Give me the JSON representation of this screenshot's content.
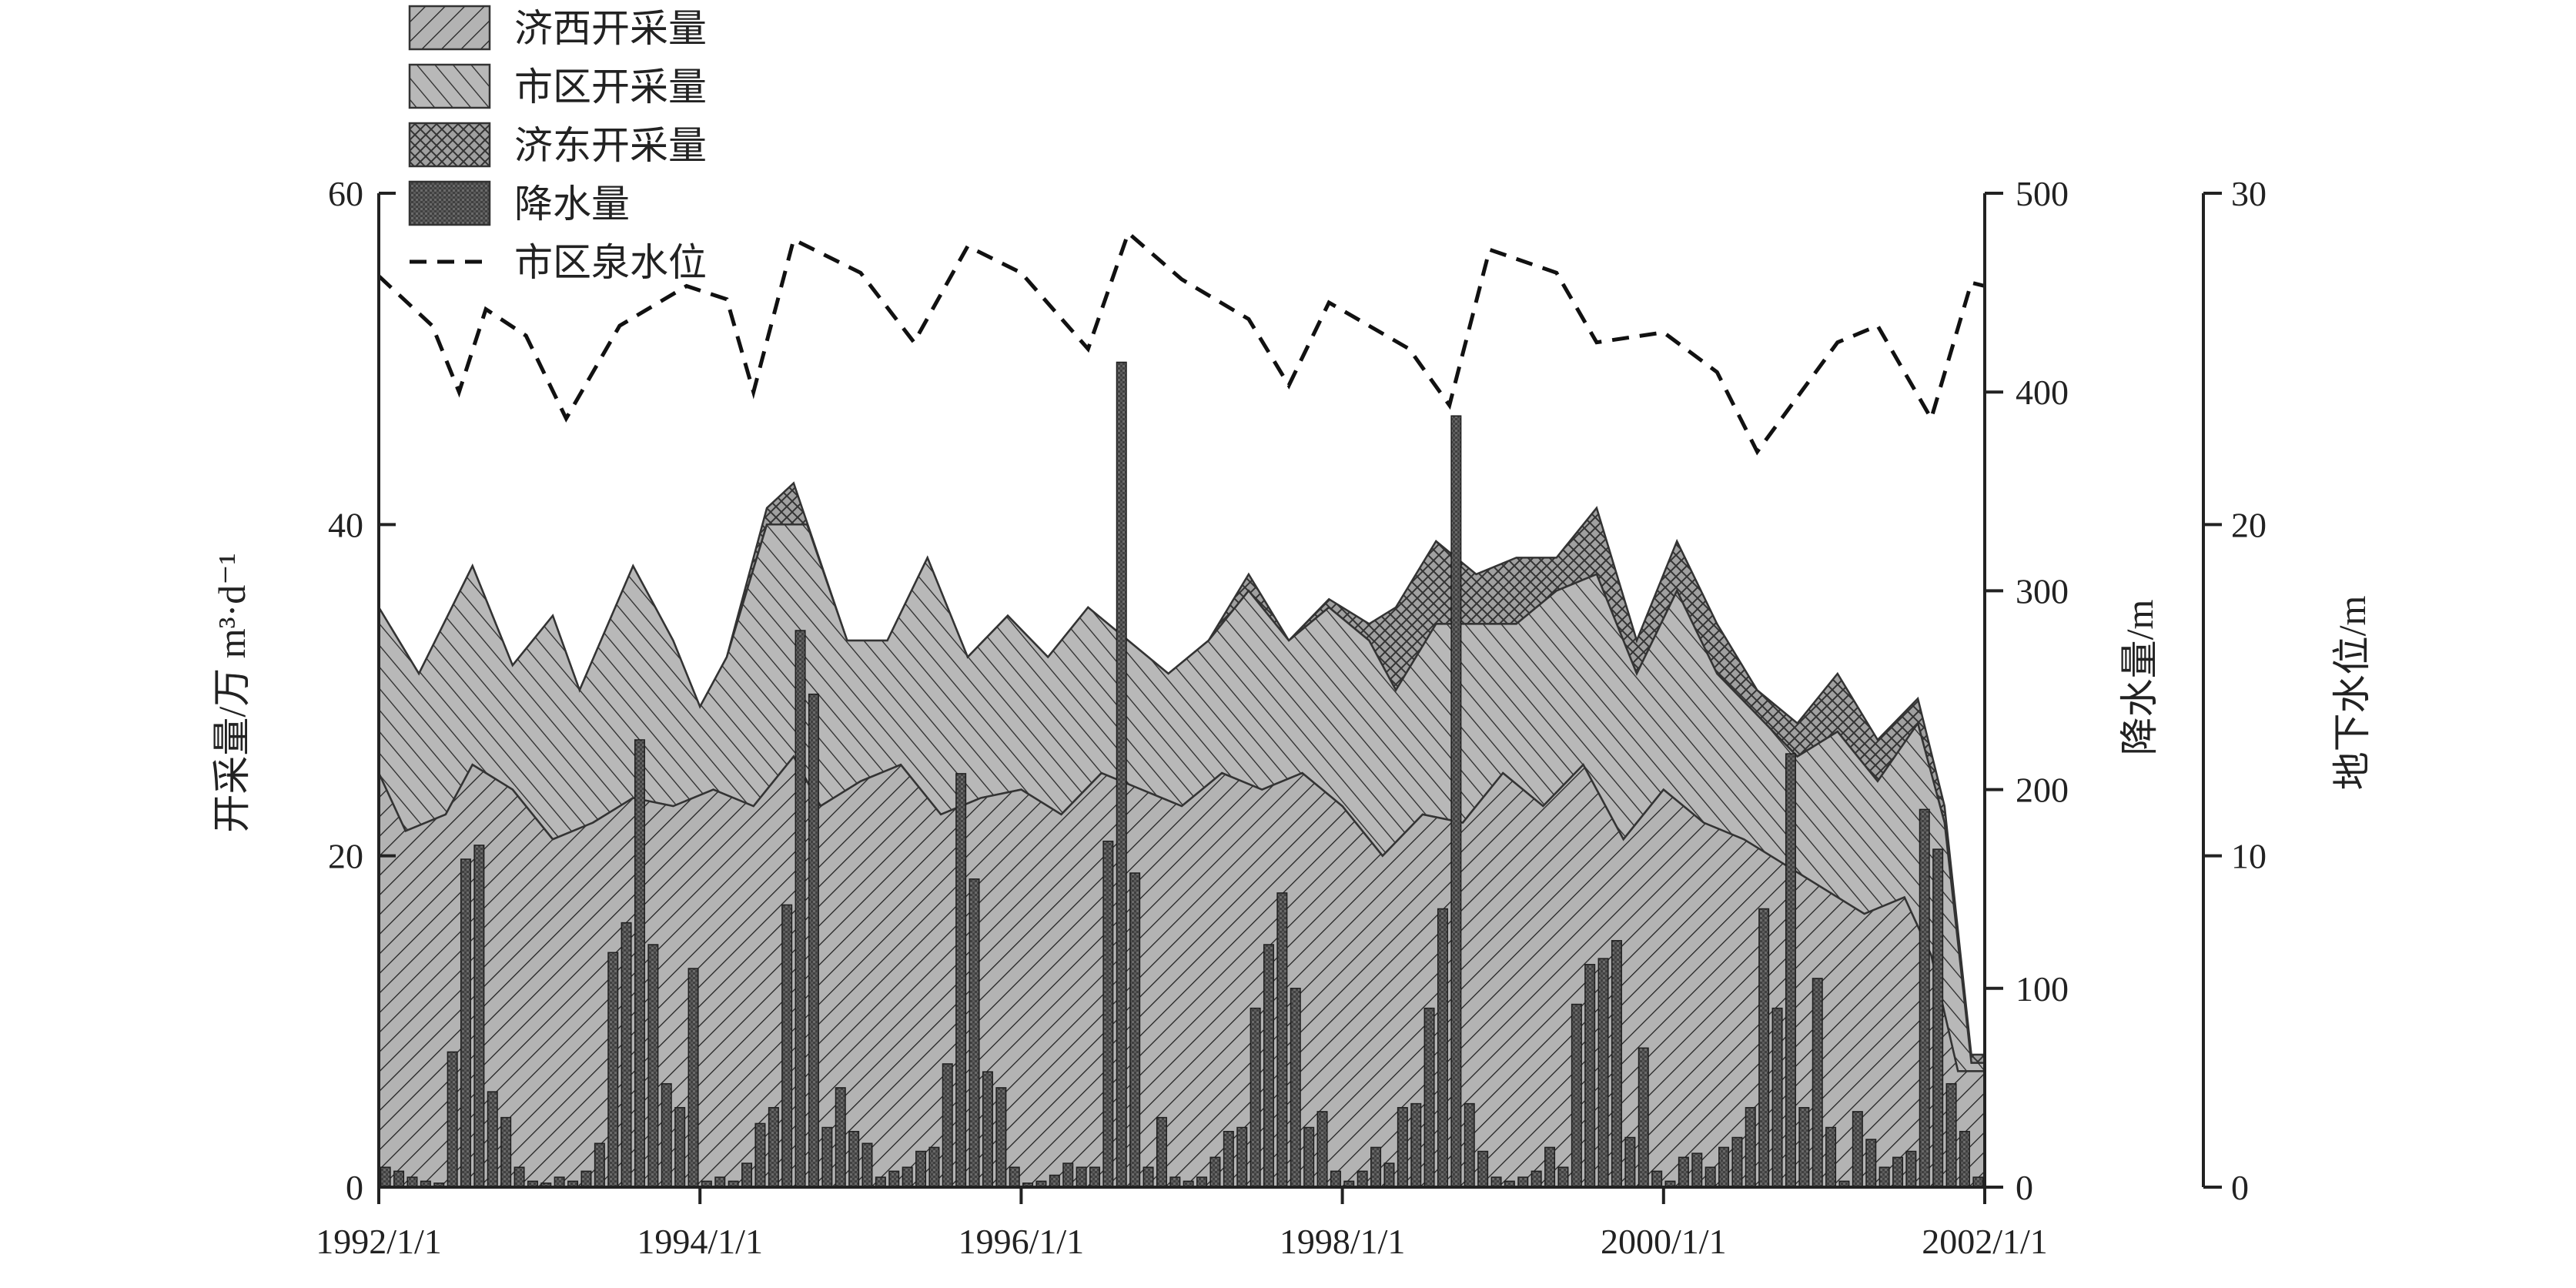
{
  "chart_data": {
    "type": "area",
    "x_unit": "month",
    "x_axis": {
      "min": "1992-01",
      "max": "2002-01",
      "tick_labels": [
        "1992/1/1",
        "1994/1/1",
        "1996/1/1",
        "1998/1/1",
        "2000/1/1",
        "2002/1/1"
      ]
    },
    "y_axes": {
      "left": {
        "label": "开采量/万 m³·d⁻¹",
        "min": 0,
        "max": 60,
        "ticks": [
          "0",
          "20",
          "40",
          "60"
        ]
      },
      "right1": {
        "label": "降水量/m",
        "min": 0,
        "max": 500,
        "ticks": [
          "0",
          "100",
          "200",
          "300",
          "400",
          "500"
        ]
      },
      "right2": {
        "label": "地下水位/m",
        "min": 0,
        "max": 30,
        "ticks": [
          "0",
          "10",
          "20",
          "30"
        ]
      }
    },
    "legend": {
      "placement": "top-left",
      "items": [
        {
          "key": "jixi",
          "label": "济西开采量"
        },
        {
          "key": "shiqu",
          "label": "市区开采量"
        },
        {
          "key": "jidong",
          "label": "济东开采量"
        },
        {
          "key": "rain",
          "label": "降水量"
        },
        {
          "key": "level",
          "label": "市区泉水位"
        }
      ]
    },
    "series": {
      "jixi_cumulative": {
        "axis": "left",
        "points": [
          [
            "1992-01",
            25
          ],
          [
            "1992-03",
            21.5
          ],
          [
            "1992-06",
            22.5
          ],
          [
            "1992-08",
            25.5
          ],
          [
            "1992-11",
            24
          ],
          [
            "1993-02",
            21
          ],
          [
            "1993-05",
            22
          ],
          [
            "1993-08",
            23.5
          ],
          [
            "1993-11",
            23
          ],
          [
            "1994-02",
            24
          ],
          [
            "1994-05",
            23
          ],
          [
            "1994-08",
            26
          ],
          [
            "1994-10",
            23
          ],
          [
            "1995-01",
            24.5
          ],
          [
            "1995-04",
            25.5
          ],
          [
            "1995-07",
            22.5
          ],
          [
            "1995-10",
            23.5
          ],
          [
            "1996-01",
            24
          ],
          [
            "1996-04",
            22.5
          ],
          [
            "1996-07",
            25
          ],
          [
            "1996-10",
            24
          ],
          [
            "1997-01",
            23
          ],
          [
            "1997-04",
            25
          ],
          [
            "1997-07",
            24
          ],
          [
            "1997-10",
            25
          ],
          [
            "1998-01",
            23
          ],
          [
            "1998-04",
            20
          ],
          [
            "1998-07",
            22.5
          ],
          [
            "1998-10",
            22
          ],
          [
            "1999-01",
            25
          ],
          [
            "1999-04",
            23
          ],
          [
            "1999-07",
            25.5
          ],
          [
            "1999-10",
            21
          ],
          [
            "2000-01",
            24
          ],
          [
            "2000-04",
            22
          ],
          [
            "2000-07",
            21
          ],
          [
            "2000-10",
            19.5
          ],
          [
            "2001-01",
            18
          ],
          [
            "2001-04",
            16.5
          ],
          [
            "2001-07",
            17.5
          ],
          [
            "2001-09",
            14
          ],
          [
            "2001-11",
            7
          ],
          [
            "2002-01",
            7
          ]
        ]
      },
      "shiqu_cumulative": {
        "axis": "left",
        "points": [
          [
            "1992-01",
            35
          ],
          [
            "1992-04",
            31
          ],
          [
            "1992-08",
            37.5
          ],
          [
            "1992-11",
            31.5
          ],
          [
            "1993-02",
            34.5
          ],
          [
            "1993-04",
            30
          ],
          [
            "1993-08",
            37.5
          ],
          [
            "1993-11",
            33
          ],
          [
            "1994-01",
            29
          ],
          [
            "1994-03",
            32
          ],
          [
            "1994-06",
            40
          ],
          [
            "1994-09",
            40
          ],
          [
            "1994-12",
            33
          ],
          [
            "1995-03",
            33
          ],
          [
            "1995-06",
            38
          ],
          [
            "1995-09",
            32
          ],
          [
            "1995-12",
            34.5
          ],
          [
            "1996-03",
            32
          ],
          [
            "1996-06",
            35
          ],
          [
            "1996-09",
            33
          ],
          [
            "1996-12",
            31
          ],
          [
            "1997-03",
            33
          ],
          [
            "1997-06",
            36
          ],
          [
            "1997-09",
            33
          ],
          [
            "1997-12",
            35
          ],
          [
            "1998-03",
            33
          ],
          [
            "1998-05",
            30
          ],
          [
            "1998-08",
            34
          ],
          [
            "1998-11",
            34
          ],
          [
            "1999-02",
            34
          ],
          [
            "1999-05",
            36
          ],
          [
            "1999-08",
            37
          ],
          [
            "1999-11",
            31
          ],
          [
            "2000-02",
            36
          ],
          [
            "2000-05",
            31
          ],
          [
            "2000-08",
            28.5
          ],
          [
            "2000-11",
            26
          ],
          [
            "2001-02",
            27.5
          ],
          [
            "2001-05",
            24.5
          ],
          [
            "2001-08",
            28
          ],
          [
            "2001-10",
            22
          ],
          [
            "2001-12",
            7.5
          ],
          [
            "2002-01",
            7.5
          ]
        ]
      },
      "jidong_cumulative": {
        "axis": "left",
        "points": [
          [
            "1992-01",
            35
          ],
          [
            "1992-04",
            31
          ],
          [
            "1992-08",
            37.5
          ],
          [
            "1992-11",
            31.5
          ],
          [
            "1993-02",
            34.5
          ],
          [
            "1993-04",
            30
          ],
          [
            "1993-08",
            37.5
          ],
          [
            "1993-11",
            33
          ],
          [
            "1994-01",
            29
          ],
          [
            "1994-03",
            32
          ],
          [
            "1994-06",
            41
          ],
          [
            "1994-08",
            42.5
          ],
          [
            "1994-12",
            33
          ],
          [
            "1995-03",
            33
          ],
          [
            "1995-06",
            38
          ],
          [
            "1995-09",
            32
          ],
          [
            "1995-12",
            34.5
          ],
          [
            "1996-03",
            32
          ],
          [
            "1996-06",
            35
          ],
          [
            "1996-09",
            33
          ],
          [
            "1996-12",
            31
          ],
          [
            "1997-03",
            33
          ],
          [
            "1997-06",
            37
          ],
          [
            "1997-09",
            33
          ],
          [
            "1997-12",
            35.5
          ],
          [
            "1998-03",
            34
          ],
          [
            "1998-05",
            35
          ],
          [
            "1998-08",
            39
          ],
          [
            "1998-11",
            37
          ],
          [
            "1999-02",
            38
          ],
          [
            "1999-05",
            38
          ],
          [
            "1999-08",
            41
          ],
          [
            "1999-11",
            33
          ],
          [
            "2000-02",
            39
          ],
          [
            "2000-05",
            34
          ],
          [
            "2000-08",
            30
          ],
          [
            "2000-11",
            28
          ],
          [
            "2001-02",
            31
          ],
          [
            "2001-05",
            27
          ],
          [
            "2001-08",
            29.5
          ],
          [
            "2001-10",
            23
          ],
          [
            "2001-12",
            8
          ],
          [
            "2002-01",
            8
          ]
        ]
      },
      "rain_monthly": {
        "axis": "right1",
        "values": [
          10,
          8,
          5,
          3,
          2,
          68,
          165,
          172,
          48,
          35,
          10,
          3,
          2,
          5,
          3,
          8,
          22,
          118,
          133,
          225,
          122,
          52,
          40,
          110,
          3,
          5,
          3,
          12,
          32,
          40,
          142,
          280,
          248,
          30,
          50,
          28,
          22,
          5,
          8,
          10,
          18,
          20,
          62,
          208,
          155,
          58,
          50,
          10,
          2,
          3,
          6,
          12,
          10,
          10,
          174,
          415,
          158,
          10,
          35,
          5,
          3,
          5,
          15,
          28,
          30,
          90,
          122,
          148,
          100,
          30,
          38,
          8,
          3,
          8,
          20,
          12,
          40,
          42,
          90,
          140,
          388,
          42,
          18,
          5,
          3,
          5,
          8,
          20,
          10,
          92,
          112,
          115,
          124,
          25,
          70,
          8,
          3,
          15,
          17,
          10,
          20,
          25,
          40,
          140,
          90,
          218,
          40,
          105,
          30,
          3,
          38,
          24,
          10,
          15,
          18,
          190,
          170,
          52,
          28,
          5
        ]
      },
      "spring_level": {
        "axis": "right2",
        "points": [
          [
            "1992-01",
            27.5
          ],
          [
            "1992-05",
            26
          ],
          [
            "1992-07",
            24
          ],
          [
            "1992-09",
            26.5
          ],
          [
            "1992-12",
            25.7
          ],
          [
            "1993-03",
            23.2
          ],
          [
            "1993-07",
            26
          ],
          [
            "1993-12",
            27.2
          ],
          [
            "1994-03",
            26.8
          ],
          [
            "1994-05",
            24
          ],
          [
            "1994-08",
            28.6
          ],
          [
            "1995-01",
            27.6
          ],
          [
            "1995-05",
            25.5
          ],
          [
            "1995-09",
            28.4
          ],
          [
            "1996-01",
            27.6
          ],
          [
            "1996-06",
            25.3
          ],
          [
            "1996-09",
            28.8
          ],
          [
            "1997-01",
            27.4
          ],
          [
            "1997-06",
            26.2
          ],
          [
            "1997-09",
            24.2
          ],
          [
            "1997-12",
            26.7
          ],
          [
            "1998-06",
            25.3
          ],
          [
            "1998-09",
            23.6
          ],
          [
            "1998-12",
            28.3
          ],
          [
            "1999-05",
            27.6
          ],
          [
            "1999-08",
            25.5
          ],
          [
            "2000-01",
            25.8
          ],
          [
            "2000-05",
            24.6
          ],
          [
            "2000-08",
            22.2
          ],
          [
            "2001-02",
            25.5
          ],
          [
            "2001-05",
            26
          ],
          [
            "2001-09",
            23.2
          ],
          [
            "2001-12",
            27.3
          ],
          [
            "2002-01",
            27.2
          ]
        ]
      }
    }
  }
}
